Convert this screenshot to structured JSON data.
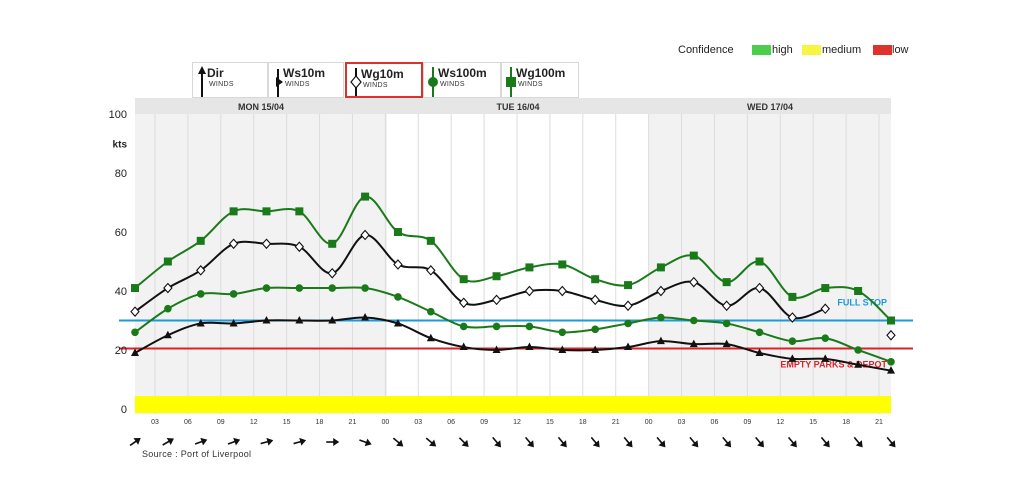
{
  "confidence": {
    "label": "Confidence",
    "items": [
      {
        "label": "high",
        "color": "#4ccd4c"
      },
      {
        "label": "medium",
        "color": "#f5f542"
      },
      {
        "label": "low",
        "color": "#e0322d"
      }
    ]
  },
  "legend_tabs": [
    {
      "title": "Dir",
      "subtitle": "WINDS",
      "icon": "arrow-up-icon"
    },
    {
      "title": "Ws10m",
      "subtitle": "WINDS",
      "icon": "black-triangle-marker-icon"
    },
    {
      "title": "Wg10m",
      "subtitle": "WINDS",
      "icon": "black-diamond-marker-icon",
      "selected": true
    },
    {
      "title": "Ws100m",
      "subtitle": "WINDS",
      "icon": "green-circle-marker-icon"
    },
    {
      "title": "Wg100m",
      "subtitle": "WINDS",
      "icon": "green-square-marker-icon"
    }
  ],
  "source": "Source : Port of Liverpool",
  "chart_data": {
    "type": "line",
    "ylabel": "kts",
    "ylim": [
      0,
      100
    ],
    "yticks": [
      "0",
      "20",
      "40",
      "60",
      "80",
      "100"
    ],
    "days": [
      "MON 15/04",
      "TUE 16/04",
      "WED 17/04"
    ],
    "hour_labels": [
      "03",
      "06",
      "09",
      "12",
      "15",
      "18",
      "21",
      "00",
      "03",
      "06",
      "09",
      "12",
      "15",
      "18",
      "21",
      "00",
      "03",
      "06",
      "09",
      "12",
      "15",
      "18",
      "21"
    ],
    "x_hours": [
      0,
      3,
      6,
      9,
      12,
      15,
      18,
      21,
      24,
      27,
      30,
      33,
      36,
      39,
      42,
      45,
      48,
      51,
      54,
      57,
      60,
      63,
      66,
      69
    ],
    "series": [
      {
        "name": "Wg100m",
        "color": "#1a7a1a",
        "marker": "square",
        "values": [
          41,
          50,
          57,
          67,
          67,
          67,
          56,
          72,
          60,
          57,
          44,
          45,
          48,
          49,
          44,
          42,
          48,
          52,
          43,
          50,
          38,
          41,
          40,
          30
        ]
      },
      {
        "name": "Wg10m",
        "color": "#111111",
        "marker": "diamond",
        "values": [
          33,
          41,
          47,
          56,
          56,
          55,
          46,
          59,
          49,
          47,
          36,
          37,
          40,
          40,
          37,
          35,
          40,
          43,
          35,
          41,
          31,
          34,
          null,
          25
        ]
      },
      {
        "name": "Ws100m",
        "color": "#1a7a1a",
        "marker": "circle",
        "values": [
          26,
          34,
          39,
          39,
          41,
          41,
          41,
          41,
          38,
          33,
          28,
          28,
          28,
          26,
          27,
          29,
          31,
          30,
          29,
          26,
          23,
          24,
          20,
          16
        ]
      },
      {
        "name": "Ws10m",
        "color": "#111111",
        "marker": "triangle",
        "values": [
          19,
          25,
          29,
          29,
          30,
          30,
          30,
          31,
          29,
          24,
          21,
          20,
          21,
          20,
          20,
          21,
          23,
          22,
          22,
          19,
          17,
          17,
          15,
          13
        ]
      }
    ],
    "thresholds": [
      {
        "label": "FULL STOP",
        "value": 30,
        "color": "#1b9ad6"
      },
      {
        "label": "EMPTY PARKS & DEPOT",
        "value": 20.5,
        "color": "#d9232b"
      }
    ],
    "confidence_band": {
      "level": "medium",
      "color": "#ffff00"
    },
    "wind_dir_icons": "arrow-direction-icon",
    "wind_directions_deg": [
      235,
      240,
      250,
      250,
      255,
      255,
      270,
      290,
      310,
      310,
      315,
      320,
      320,
      320,
      320,
      320,
      320,
      320,
      320,
      320,
      320,
      320,
      320,
      320
    ]
  }
}
